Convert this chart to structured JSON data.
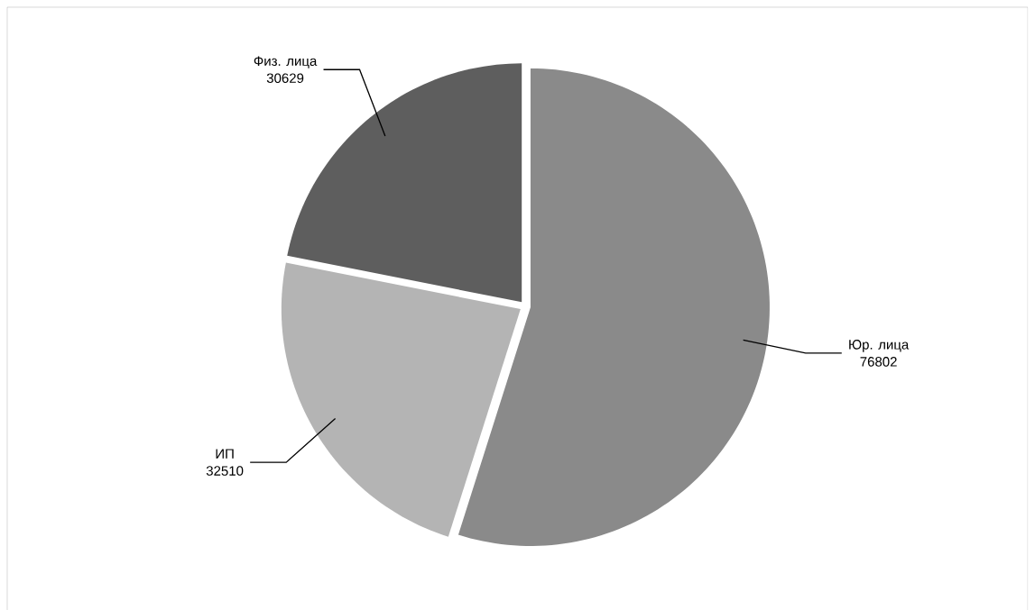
{
  "chart_data": {
    "type": "pie",
    "categories": [
      "Юр. лица",
      "ИП",
      "Физ. лица"
    ],
    "values": [
      76802,
      32510,
      30629
    ],
    "value_labels": [
      "76802",
      "32510",
      "30629"
    ],
    "colors": [
      "#8a8a8a",
      "#b4b4b4",
      "#5e5e5e"
    ]
  }
}
